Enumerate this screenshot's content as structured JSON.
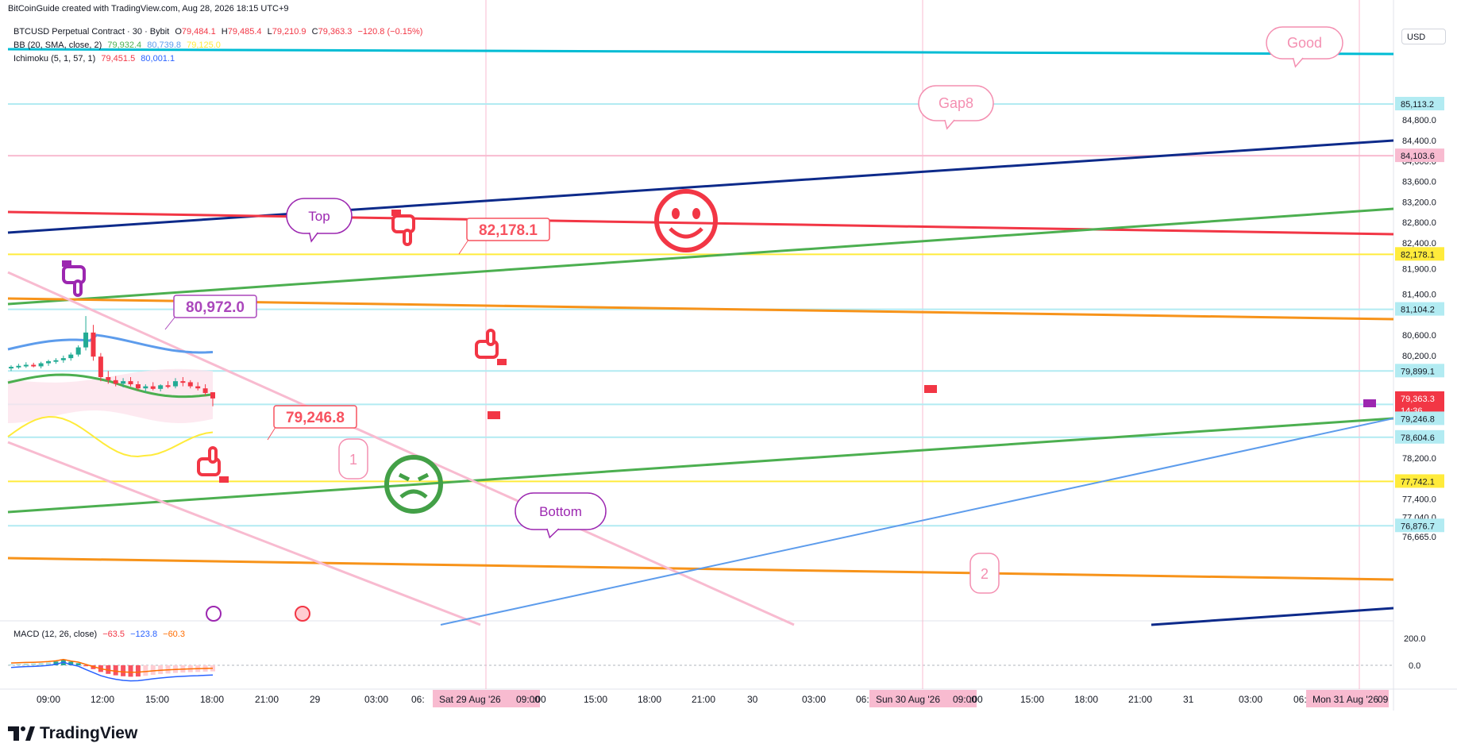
{
  "header": {
    "credit": "BitCoinGuide created with TradingView.com, Aug 28, 2026 18:15 UTC+9",
    "symbol": "BTCUSD Perpetual Contract · 30 · Bybit",
    "o_label": "O",
    "o": "79,484.1",
    "h_label": "H",
    "h": "79,485.4",
    "l_label": "L",
    "l": "79,210.9",
    "c_label": "C",
    "c": "79,363.3",
    "change": "−120.8 (−0.15%)"
  },
  "legends": {
    "bb": {
      "name": "BB (20, SMA, close, 2)",
      "v1": "79,932.4",
      "v2": "80,739.8",
      "v3": "79,125.0"
    },
    "ichimoku": {
      "name": "Ichimoku (5, 1, 57, 1)",
      "v1": "79,451.5",
      "v2": "80,001.1"
    },
    "macd": {
      "name": "MACD (12, 26, close)",
      "v1": "−63.5",
      "v2": "−123.8",
      "v3": "−60.3"
    }
  },
  "currency_button": "USD",
  "brand": "TradingView",
  "colors": {
    "up": "#22ab94",
    "down": "#f23645",
    "blue_dark": "#0d2a8a",
    "red_line": "#f23645",
    "green_line": "#4caf50",
    "orange_line": "#f7931a",
    "pink_line": "#f8bbd0",
    "light_blue": "#b2ebf2",
    "yellow": "#ffeb3b",
    "purple": "#9c27b0",
    "sky": "#5d9cec"
  },
  "annotations": {
    "good": "Good",
    "gap8": "Gap8",
    "top": "Top",
    "bottom": "Bottom",
    "label_82178": "82,178.1",
    "label_80972": "80,972.0",
    "label_79246": "79,246.8",
    "marker_1": "1",
    "marker_2": "2"
  },
  "chart_data": {
    "type": "candlestick",
    "price_axis_ticks": [
      "85,200.0",
      "84,800.0",
      "84,400.0",
      "84,000.0",
      "83,600.0",
      "83,200.0",
      "82,800.0",
      "82,400.0",
      "81,900.0",
      "81,400.0",
      "80,600.0",
      "80,200.0",
      "78,200.0",
      "77,400.0",
      "77,040.0",
      "76,665.0"
    ],
    "price_badges": [
      {
        "value": "85,113.2",
        "color": "#b2ebf2"
      },
      {
        "value": "84,103.6",
        "color": "#f8bbd0"
      },
      {
        "value": "82,178.1",
        "color": "#ffeb3b"
      },
      {
        "value": "81,104.2",
        "color": "#b2ebf2"
      },
      {
        "value": "79,899.1",
        "color": "#b2ebf2"
      },
      {
        "value": "79,363.3",
        "color": "#f23645"
      },
      {
        "value": "14:36",
        "color": "#f23645"
      },
      {
        "value": "79,246.8",
        "color": "#b2ebf2"
      },
      {
        "value": "78,604.6",
        "color": "#b2ebf2"
      },
      {
        "value": "77,742.1",
        "color": "#ffeb3b"
      },
      {
        "value": "76,876.7",
        "color": "#b2ebf2"
      }
    ],
    "macd_axis_ticks": [
      "200.0",
      "0.0"
    ],
    "time_axis_ticks": [
      "09:00",
      "12:00",
      "15:00",
      "18:00",
      "21:00",
      "29",
      "03:00",
      "06:",
      "Sat 29 Aug '26",
      "09:00",
      ":00",
      "15:00",
      "18:00",
      "21:00",
      "30",
      "03:00",
      "06:",
      "Sun 30 Aug '26",
      "09:00",
      ":00",
      "15:00",
      "18:00",
      "21:00",
      "31",
      "03:00",
      "06:",
      "Mon 31 Aug '26",
      "09"
    ],
    "candles": [
      [
        79950,
        80010,
        79900,
        79980
      ],
      [
        79980,
        80040,
        79940,
        80000
      ],
      [
        80000,
        80070,
        79960,
        80020
      ],
      [
        80020,
        80060,
        79970,
        79990
      ],
      [
        79990,
        80080,
        79950,
        80050
      ],
      [
        80050,
        80120,
        80000,
        80090
      ],
      [
        80090,
        80150,
        80040,
        80110
      ],
      [
        80110,
        80200,
        80060,
        80150
      ],
      [
        80150,
        80260,
        80100,
        80220
      ],
      [
        80220,
        80400,
        80180,
        80360
      ],
      [
        80360,
        80972,
        80300,
        80650
      ],
      [
        80650,
        80800,
        80100,
        80180
      ],
      [
        80180,
        80250,
        79700,
        79780
      ],
      [
        79780,
        79900,
        79650,
        79720
      ],
      [
        79720,
        79800,
        79600,
        79650
      ],
      [
        79650,
        79760,
        79580,
        79700
      ],
      [
        79700,
        79780,
        79600,
        79640
      ],
      [
        79640,
        79700,
        79520,
        79560
      ],
      [
        79560,
        79640,
        79480,
        79600
      ],
      [
        79600,
        79680,
        79520,
        79550
      ],
      [
        79550,
        79640,
        79500,
        79620
      ],
      [
        79620,
        79700,
        79560,
        79600
      ],
      [
        79600,
        79760,
        79560,
        79700
      ],
      [
        79700,
        79780,
        79600,
        79680
      ],
      [
        79680,
        79720,
        79560,
        79600
      ],
      [
        79600,
        79680,
        79520,
        79560
      ],
      [
        79560,
        79640,
        79420,
        79470
      ],
      [
        79484.1,
        79485.4,
        79210.9,
        79363.3
      ]
    ],
    "macd_histogram": [
      10,
      14,
      18,
      20,
      24,
      30,
      40,
      60,
      38,
      22,
      -10,
      -40,
      -70,
      -90,
      -105,
      -115,
      -120,
      -118,
      -110,
      -100,
      -92,
      -86,
      -80,
      -76,
      -72,
      -70,
      -66,
      -63.5
    ]
  }
}
